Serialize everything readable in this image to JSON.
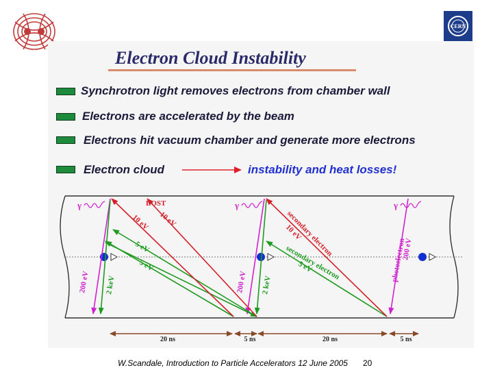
{
  "title": "Electron Cloud Instability",
  "bullets": [
    {
      "text": "Synchrotron light removes electrons from chamber wall"
    },
    {
      "text": "Electrons are accelerated by the beam"
    },
    {
      "text": "Electrons hit vacuum chamber and generate more electrons"
    },
    {
      "text": "Electron cloud",
      "result": "instability and heat losses!"
    }
  ],
  "diagram": {
    "gamma": "γ",
    "labels": {
      "lost": "LOST",
      "ev10_a": "10 eV",
      "ev10_b": "10 eV",
      "ev5_a": "5 eV",
      "ev5_b": "5 eV",
      "ev200_a": "200 eV",
      "kev2_a": "2 keV",
      "ev200_b": "200 eV",
      "kev2_b": "2 keV",
      "secondary_1": "secondary electron",
      "ev10_c": "10 eV",
      "secondary_2": "secondary electron",
      "ev5_c": "5 eV",
      "photoelectron": "photoelectron",
      "ev200_c": "200 eV"
    },
    "timing": [
      "20 ns",
      "5 ns",
      "20 ns",
      "5 ns"
    ]
  },
  "footer": {
    "text": "W.Scandale, Introduction to Particle Accelerators 12 June 2005",
    "page": "20"
  }
}
